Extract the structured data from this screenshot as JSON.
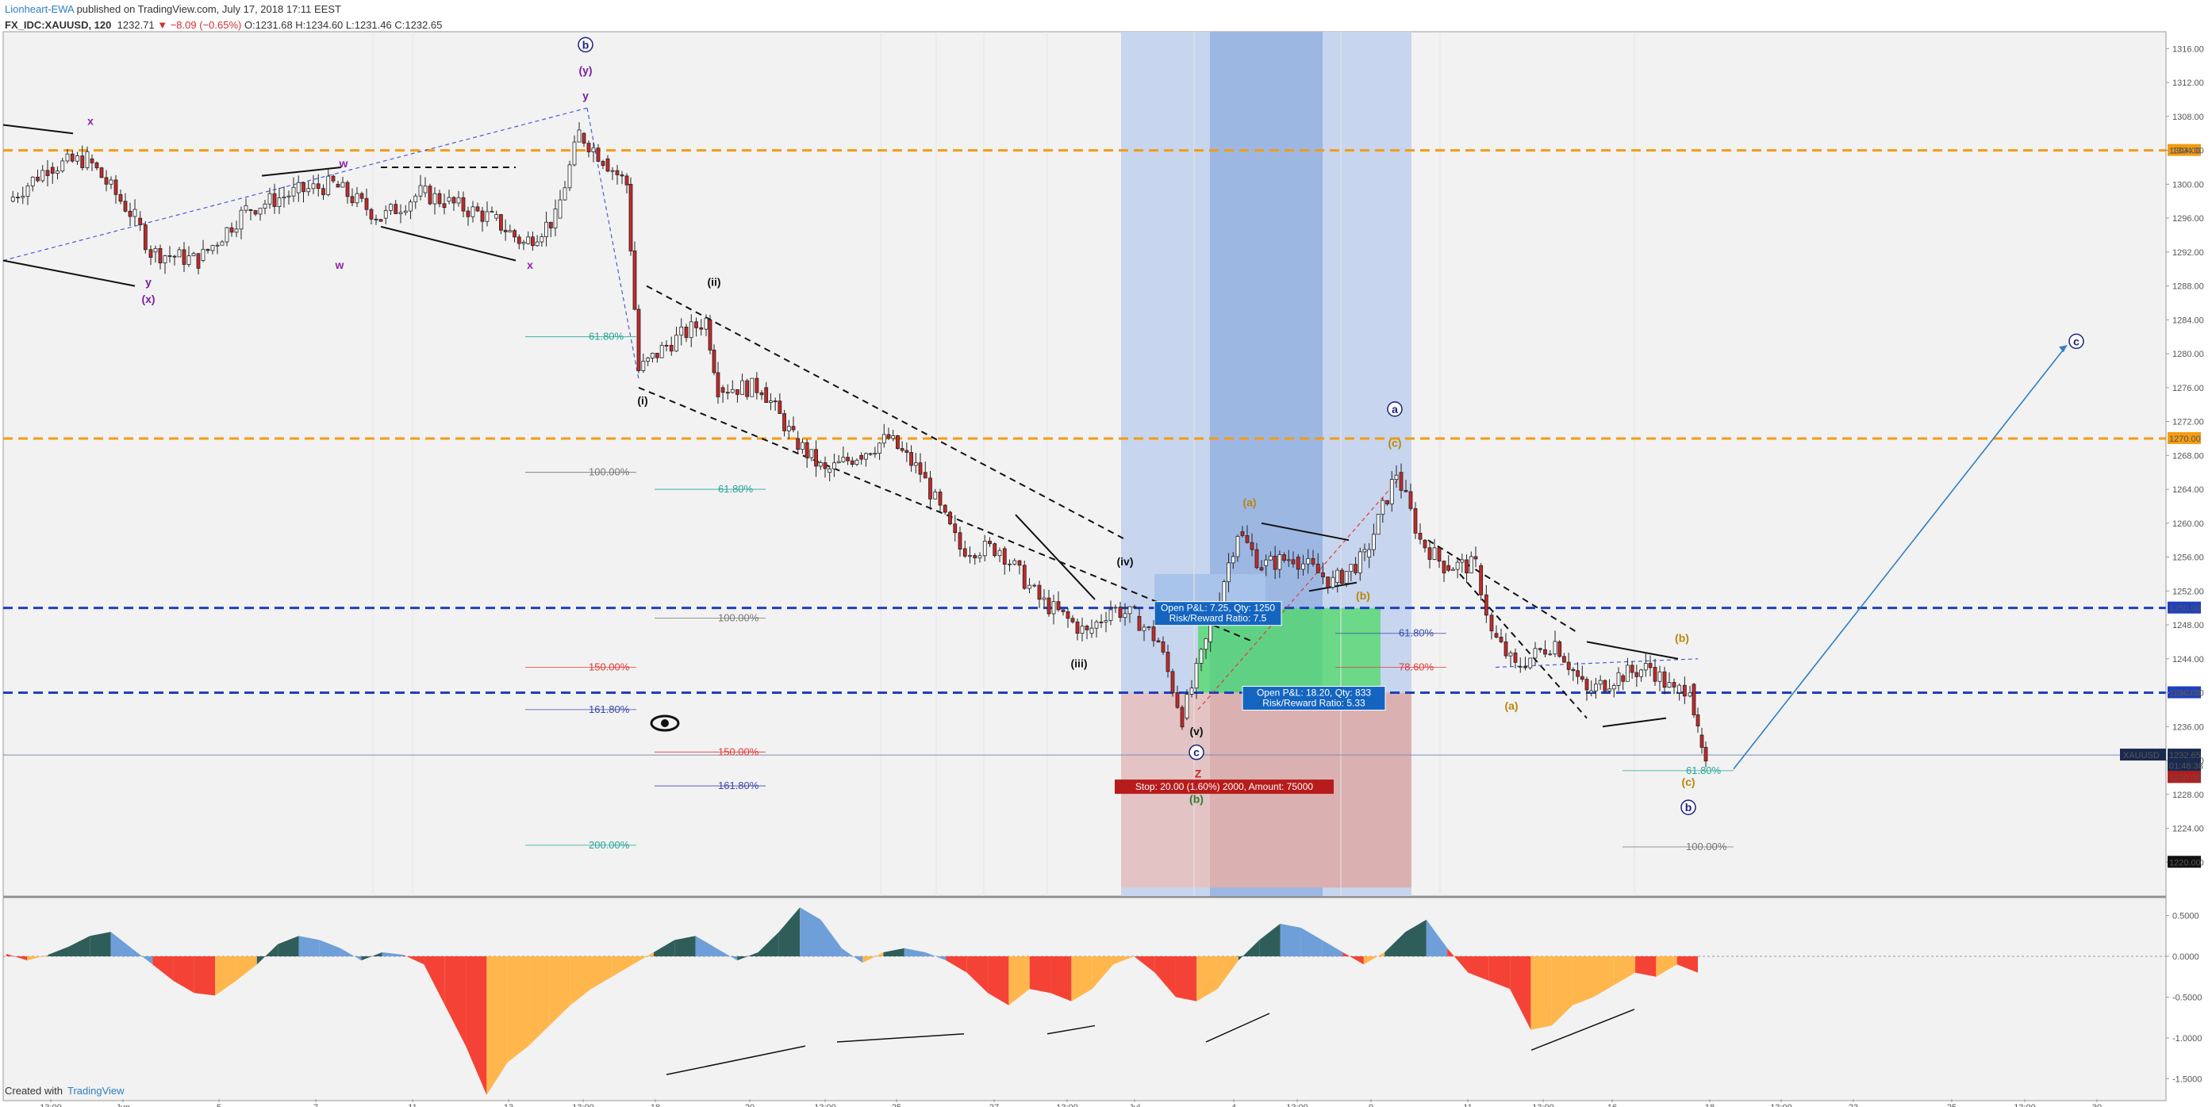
{
  "header": {
    "author": "Lionheart-EWA",
    "published": "published on TradingView.com, July 17, 2018 17:11 EEST",
    "symbol": "FX_IDC:XAUUSD, 120",
    "last": "1232.71",
    "change": "▼ −8.09 (−0.65%)",
    "ohlc": "O:1231.68 H:1234.60 L:1231.46 C:1232.65"
  },
  "footer": {
    "created_with": "Created with",
    "brand": "TradingView"
  },
  "colors": {
    "up": "#ffffff",
    "down": "#c62828",
    "orange_line": "#f39c12",
    "blue_line": "#1f3fbf",
    "osc_pos_dark": "#2f5e5a",
    "osc_pos_light": "#6f9fd8",
    "osc_neg_dark": "#f44336",
    "osc_neg_light": "#ffb74d"
  },
  "chart_data": [
    {
      "type": "line",
      "symbol": "XAUUSD",
      "ylim": [
        1216,
        1318
      ],
      "y_ticks": [
        "1316.00",
        "1312.00",
        "1308.00",
        "1304.00",
        "1300.00",
        "1296.00",
        "1292.00",
        "1288.00",
        "1284.00",
        "1280.00",
        "1276.00",
        "1272.00",
        "1268.00",
        "1264.00",
        "1260.00",
        "1256.00",
        "1252.00",
        "1248.00",
        "1244.00",
        "1240.00",
        "1236.00",
        "1232.00",
        "1228.00",
        "1224.00",
        "1220.00"
      ],
      "x_ticks": [
        "13:00",
        "Jun",
        "5",
        "7",
        "11",
        "13",
        "13:00",
        "18",
        "20",
        "13:00",
        "25",
        "27",
        "13:00",
        "Jul",
        "4",
        "13:00",
        "9",
        "11",
        "13:00",
        "16",
        "18",
        "13:00",
        "23",
        "25",
        "13:00",
        "30"
      ],
      "series": [
        {
          "x": [
            "May 29",
            "May 30",
            "May 31",
            "Jun 1",
            "Jun 4",
            "Jun 5",
            "Jun 6",
            "Jun 7",
            "Jun 8",
            "Jun 11",
            "Jun 12",
            "Jun 13",
            "Jun 14",
            "Jun 15",
            "Jun 18",
            "Jun 19",
            "Jun 20",
            "Jun 21",
            "Jun 22",
            "Jun 25",
            "Jun 26",
            "Jun 27",
            "Jun 28",
            "Jun 29",
            "Jul 2",
            "Jul 3",
            "Jul 4",
            "Jul 5",
            "Jul 6",
            "Jul 9",
            "Jul 10",
            "Jul 11",
            "Jul 12",
            "Jul 13",
            "Jul 16",
            "Jul 17"
          ],
          "values": [
            1298,
            1303,
            1300,
            1297,
            1293,
            1297,
            1299,
            1300,
            1298,
            1299,
            1298,
            1295,
            1307,
            1280,
            1278,
            1282,
            1272,
            1270,
            1270,
            1268,
            1264,
            1257,
            1250,
            1252,
            1243,
            1239,
            1259,
            1257,
            1255,
            1266,
            1256,
            1250,
            1243,
            1245,
            1241,
            1231
          ]
        }
      ],
      "horizontal_levels": [
        {
          "value": 1304.0,
          "label": "1304.00",
          "style": "orange-dashed"
        },
        {
          "value": 1270.0,
          "label": "1270.00",
          "style": "orange-dashed"
        },
        {
          "value": 1250.0,
          "label": "1250.00",
          "style": "blue-dashed"
        },
        {
          "value": 1240.0,
          "label": "1240.00",
          "style": "blue-dashed"
        }
      ],
      "price_tags": [
        {
          "value": 1232.65,
          "label": "1232.65",
          "name": "XAUUSD"
        },
        {
          "value": 1232.0,
          "label": "01:48:38"
        },
        {
          "value": 1230.0,
          "label": "1230.00"
        },
        {
          "value": 1220.0,
          "label": "1220.00"
        }
      ],
      "wave_labels": [
        {
          "text": "b",
          "price": 1316,
          "circled": true,
          "color": "#1a237e"
        },
        {
          "text": "(y)",
          "price": 1313,
          "color": "#7b1fa2"
        },
        {
          "text": "y",
          "price": 1310,
          "color": "#7b1fa2"
        },
        {
          "text": "x",
          "price": 1307,
          "color": "#8e24aa"
        },
        {
          "text": "w",
          "price": 1302,
          "color": "#8e24aa"
        },
        {
          "text": "y",
          "price": 1288,
          "color": "#7b1fa2"
        },
        {
          "text": "(x)",
          "price": 1286,
          "color": "#7b1fa2"
        },
        {
          "text": "x",
          "price": 1290,
          "color": "#8e24aa"
        },
        {
          "text": "w",
          "price": 1290,
          "color": "#8e24aa"
        },
        {
          "text": "(ii)",
          "price": 1288,
          "color": "#111"
        },
        {
          "text": "(i)",
          "price": 1274,
          "color": "#111"
        },
        {
          "text": "(iii)",
          "price": 1243,
          "color": "#111"
        },
        {
          "text": "(iv)",
          "price": 1255,
          "color": "#111"
        },
        {
          "text": "(v)",
          "price": 1235,
          "color": "#111"
        },
        {
          "text": "c",
          "price": 1232.5,
          "circled": true,
          "color": "#1a237e"
        },
        {
          "text": "Z",
          "price": 1230,
          "color": "#c62828"
        },
        {
          "text": "(b)",
          "price": 1227,
          "color": "#2e7d32"
        },
        {
          "text": "a",
          "price": 1273,
          "circled": true,
          "color": "#1a237e"
        },
        {
          "text": "(c)",
          "price": 1269,
          "color": "#b8860b"
        },
        {
          "text": "(a)",
          "price": 1262,
          "color": "#b8860b"
        },
        {
          "text": "(b)",
          "price": 1251,
          "color": "#b8860b"
        },
        {
          "text": "(a)",
          "price": 1238,
          "color": "#b8860b"
        },
        {
          "text": "(b)",
          "price": 1246,
          "color": "#b8860b"
        },
        {
          "text": "(c)",
          "price": 1229,
          "color": "#b8860b"
        },
        {
          "text": "b",
          "price": 1226,
          "circled": true,
          "color": "#1a237e"
        },
        {
          "text": "c",
          "price": 1281,
          "circled": true,
          "color": "#1a237e"
        }
      ],
      "fib_levels": [
        {
          "text": "61.80%",
          "price": 1282,
          "color": "#26a69a"
        },
        {
          "text": "100.00%",
          "price": 1266,
          "color": "#777"
        },
        {
          "text": "61.80%",
          "price": 1264,
          "color": "#26a69a"
        },
        {
          "text": "100.00%",
          "price": 1248.8,
          "color": "#777"
        },
        {
          "text": "150.00%",
          "price": 1243,
          "color": "#e53935"
        },
        {
          "text": "161.80%",
          "price": 1238,
          "color": "#3949ab"
        },
        {
          "text": "150.00%",
          "price": 1233,
          "color": "#e53935"
        },
        {
          "text": "161.80%",
          "price": 1229,
          "color": "#3949ab"
        },
        {
          "text": "200.00%",
          "price": 1222,
          "color": "#26a69a"
        },
        {
          "text": "61.80%",
          "price": 1247,
          "color": "#3949ab"
        },
        {
          "text": "78.60%",
          "price": 1243,
          "color": "#e53935"
        },
        {
          "text": "61.80%",
          "price": 1230.8,
          "color": "#26a69a"
        },
        {
          "text": "100.00%",
          "price": 1221.8,
          "color": "#777"
        }
      ],
      "position_boxes": [
        {
          "line1": "Open P&L: 7.25, Qty: 1250",
          "line2": "Risk/Reward Ratio: 7.5"
        },
        {
          "line1": "Open P&L: 18.20, Qty: 833",
          "line2": "Risk/Reward Ratio: 5.33"
        }
      ],
      "stop_label": "Stop: 20.00 (1.60%) 2000, Amount: 75000"
    },
    {
      "type": "area",
      "name": "oscillator",
      "ylim": [
        -1.75,
        0.7
      ],
      "y_ticks": [
        "0.5000",
        "0.0000",
        "-0.5000",
        "-1.0000",
        "-1.5000"
      ],
      "values": [
        0.03,
        -0.05,
        0.02,
        0.12,
        0.25,
        0.3,
        0.1,
        -0.1,
        -0.3,
        -0.45,
        -0.48,
        -0.3,
        -0.1,
        0.15,
        0.25,
        0.2,
        0.1,
        -0.05,
        0.05,
        0.02,
        -0.1,
        -0.6,
        -1.1,
        -1.7,
        -1.3,
        -1.1,
        -0.85,
        -0.6,
        -0.4,
        -0.25,
        -0.1,
        0.05,
        0.2,
        0.25,
        0.1,
        -0.05,
        0.05,
        0.3,
        0.6,
        0.45,
        0.1,
        -0.08,
        0.05,
        0.1,
        0.05,
        -0.05,
        -0.2,
        -0.45,
        -0.6,
        -0.4,
        -0.45,
        -0.55,
        -0.4,
        -0.1,
        0.0,
        -0.2,
        -0.5,
        -0.55,
        -0.4,
        -0.05,
        0.2,
        0.4,
        0.35,
        0.2,
        0.05,
        -0.1,
        0.05,
        0.3,
        0.45,
        0.1,
        -0.2,
        -0.3,
        -0.4,
        -0.9,
        -0.85,
        -0.6,
        -0.5,
        -0.35,
        -0.2,
        -0.25,
        -0.1,
        -0.2
      ]
    }
  ]
}
